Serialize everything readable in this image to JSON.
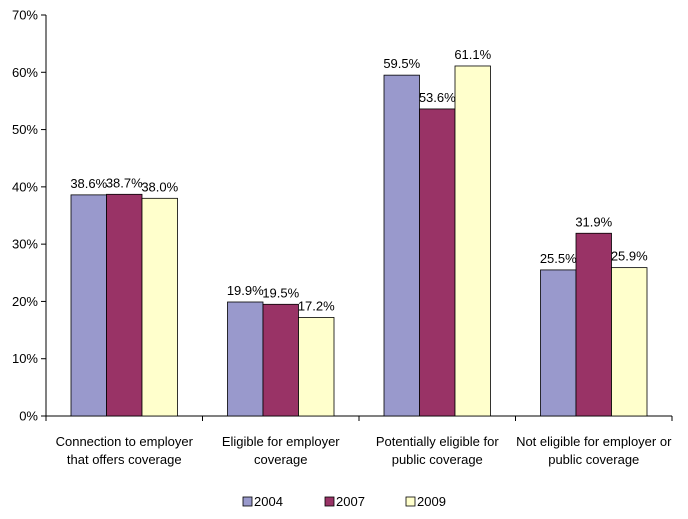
{
  "chart_data": {
    "type": "bar",
    "title": "",
    "xlabel": "",
    "ylabel": "",
    "ylim": [
      0,
      70
    ],
    "yticks": [
      "0%",
      "10%",
      "20%",
      "30%",
      "40%",
      "50%",
      "60%",
      "70%"
    ],
    "grid": false,
    "legend_position": "bottom",
    "categories": [
      [
        "Connection to employer",
        "that offers coverage"
      ],
      [
        "Eligible for employer",
        "coverage"
      ],
      [
        "Potentially eligible for",
        "public coverage"
      ],
      [
        "Not eligible for employer or",
        "public coverage"
      ]
    ],
    "series": [
      {
        "name": "2004",
        "color": "#9999cc",
        "values": [
          38.6,
          19.9,
          59.5,
          25.5
        ],
        "labels": [
          "38.6%",
          "19.9%",
          "59.5%",
          "25.5%"
        ]
      },
      {
        "name": "2007",
        "color": "#993366",
        "values": [
          38.7,
          19.5,
          53.6,
          31.9
        ],
        "labels": [
          "38.7%",
          "19.5%",
          "53.6%",
          "31.9%"
        ]
      },
      {
        "name": "2009",
        "color": "#ffffcc",
        "values": [
          38.0,
          17.2,
          61.1,
          25.9
        ],
        "labels": [
          "38.0%",
          "17.2%",
          "61.1%",
          "25.9%"
        ]
      }
    ]
  }
}
